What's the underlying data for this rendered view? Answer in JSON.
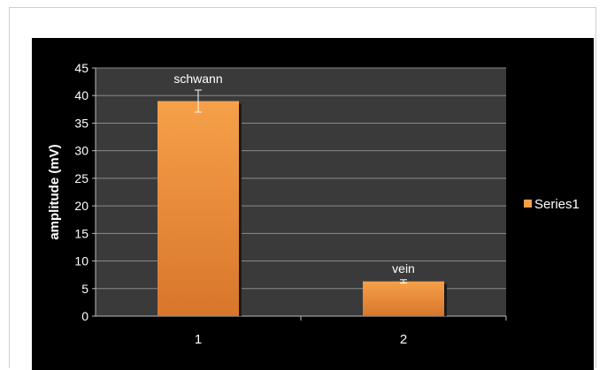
{
  "chart_data": {
    "type": "bar",
    "title": "",
    "xlabel": "",
    "ylabel": "amplitude (mV)",
    "ylim": [
      0,
      45
    ],
    "yticks": [
      0,
      5,
      10,
      15,
      20,
      25,
      30,
      35,
      40,
      45
    ],
    "categories": [
      "1",
      "2"
    ],
    "series": [
      {
        "name": "Series1",
        "values": [
          39,
          6.3
        ],
        "error": [
          2,
          0.3
        ],
        "data_labels": [
          "schwann",
          "vein"
        ]
      }
    ],
    "legend_position": "right",
    "grid": true,
    "colors": {
      "background": "#000000",
      "plot_area": "#3a3a3a",
      "bar_top": "#f6a049",
      "bar_bottom": "#d8762b",
      "grid": "#8a8a8a",
      "text": "#ffffff"
    }
  }
}
